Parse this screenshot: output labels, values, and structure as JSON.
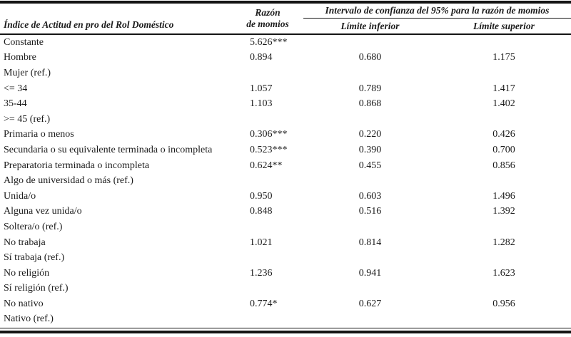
{
  "colors": {
    "background": "#ffffff",
    "text": "#1b1b1b",
    "rule": "#141414"
  },
  "table": {
    "label_header": "Índice de Actitud en pro del Rol Doméstico",
    "or_header_line1": "Razón",
    "or_header_line2": "de momios",
    "ci_group_header": "Intervalo de confianza del 95% para la razón de momios",
    "ci_lower_header": "Límite inferior",
    "ci_upper_header": "Límite superior",
    "rows": [
      {
        "label": "Constante",
        "or": "5.626***",
        "lower": "",
        "upper": ""
      },
      {
        "label": "Hombre",
        "or": "0.894",
        "lower": "0.680",
        "upper": "1.175"
      },
      {
        "label": "Mujer (ref.)",
        "or": "",
        "lower": "",
        "upper": ""
      },
      {
        "label": "<= 34",
        "or": "1.057",
        "lower": "0.789",
        "upper": "1.417"
      },
      {
        "label": "35-44",
        "or": "1.103",
        "lower": "0.868",
        "upper": "1.402"
      },
      {
        "label": ">= 45 (ref.)",
        "or": "",
        "lower": "",
        "upper": ""
      },
      {
        "label": "Primaria o menos",
        "or": "0.306***",
        "lower": "0.220",
        "upper": "0.426"
      },
      {
        "label": "Secundaria o su equivalente terminada o incompleta",
        "or": "0.523***",
        "lower": "0.390",
        "upper": "0.700"
      },
      {
        "label": "Preparatoria terminada o incompleta",
        "or": "0.624**",
        "lower": "0.455",
        "upper": "0.856"
      },
      {
        "label": "Algo de universidad o más (ref.)",
        "or": "",
        "lower": "",
        "upper": ""
      },
      {
        "label": "Unida/o",
        "or": "0.950",
        "lower": "0.603",
        "upper": "1.496"
      },
      {
        "label": "Alguna vez unida/o",
        "or": "0.848",
        "lower": "0.516",
        "upper": "1.392"
      },
      {
        "label": "Soltera/o (ref.)",
        "or": "",
        "lower": "",
        "upper": ""
      },
      {
        "label": "No trabaja",
        "or": "1.021",
        "lower": "0.814",
        "upper": "1.282"
      },
      {
        "label": "Sí trabaja (ref.)",
        "or": "",
        "lower": "",
        "upper": ""
      },
      {
        "label": "No religión",
        "or": "1.236",
        "lower": "0.941",
        "upper": "1.623"
      },
      {
        "label": "Sí religión (ref.)",
        "or": "",
        "lower": "",
        "upper": ""
      },
      {
        "label": "No nativo",
        "or": "0.774*",
        "lower": "0.627",
        "upper": "0.956"
      },
      {
        "label": "Nativo (ref.)",
        "or": "",
        "lower": "",
        "upper": ""
      }
    ]
  }
}
